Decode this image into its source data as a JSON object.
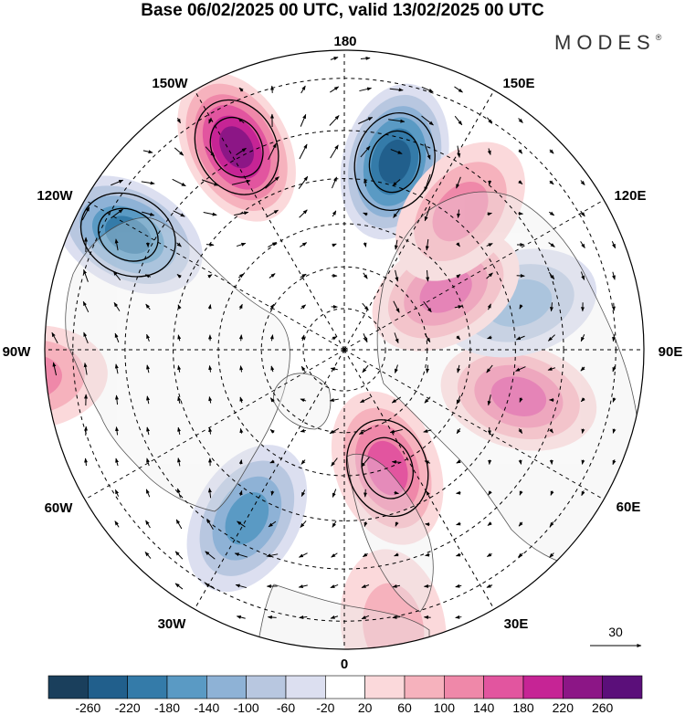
{
  "title": "Base 06/02/2025 00 UTC, valid 13/02/2025 00 UTC",
  "brand": "MODES",
  "brand_mark": "®",
  "longitude_labels": {
    "lon_0": "0",
    "lon_30e": "30E",
    "lon_60e": "60E",
    "lon_90e": "90E",
    "lon_120e": "120E",
    "lon_150e": "150E",
    "lon_180": "180",
    "lon_150w": "150W",
    "lon_120w": "120W",
    "lon_90w": "90W",
    "lon_60w": "60W",
    "lon_30w": "30W"
  },
  "vector_reference": "30",
  "colorbar": {
    "colors": [
      "#1a3f5c",
      "#215f8c",
      "#347ba9",
      "#5a9ac4",
      "#8eb2d6",
      "#b8c7e0",
      "#dcdff0",
      "#ffffff",
      "#fbd9db",
      "#f6b2bd",
      "#ef88a9",
      "#e2559f",
      "#c62495",
      "#8c1686",
      "#5b0f7a"
    ],
    "labels": [
      "-260",
      "-220",
      "-180",
      "-140",
      "-100",
      "-60",
      "-20",
      "20",
      "60",
      "100",
      "140",
      "180",
      "220",
      "260"
    ]
  },
  "map_data": {
    "projection": "north polar stereographic",
    "field": "anomaly",
    "anomaly_centers": [
      {
        "lon": 165,
        "lat": 45,
        "value": -220
      },
      {
        "lon": -152,
        "lat": 38,
        "value": 235
      },
      {
        "lon": -118,
        "lat": 35,
        "value": -175
      },
      {
        "lon": -85,
        "lat": 22,
        "value": 120
      },
      {
        "lon": 20,
        "lat": 60,
        "value": 150
      },
      {
        "lon": 75,
        "lat": 48,
        "value": 125
      },
      {
        "lon": 105,
        "lat": 48,
        "value": -110
      },
      {
        "lon": 120,
        "lat": 62,
        "value": 145
      },
      {
        "lon": 140,
        "lat": 48,
        "value": 110
      },
      {
        "lon": -30,
        "lat": 45,
        "value": -130
      },
      {
        "lon": 10,
        "lat": 28,
        "value": 45
      }
    ]
  }
}
